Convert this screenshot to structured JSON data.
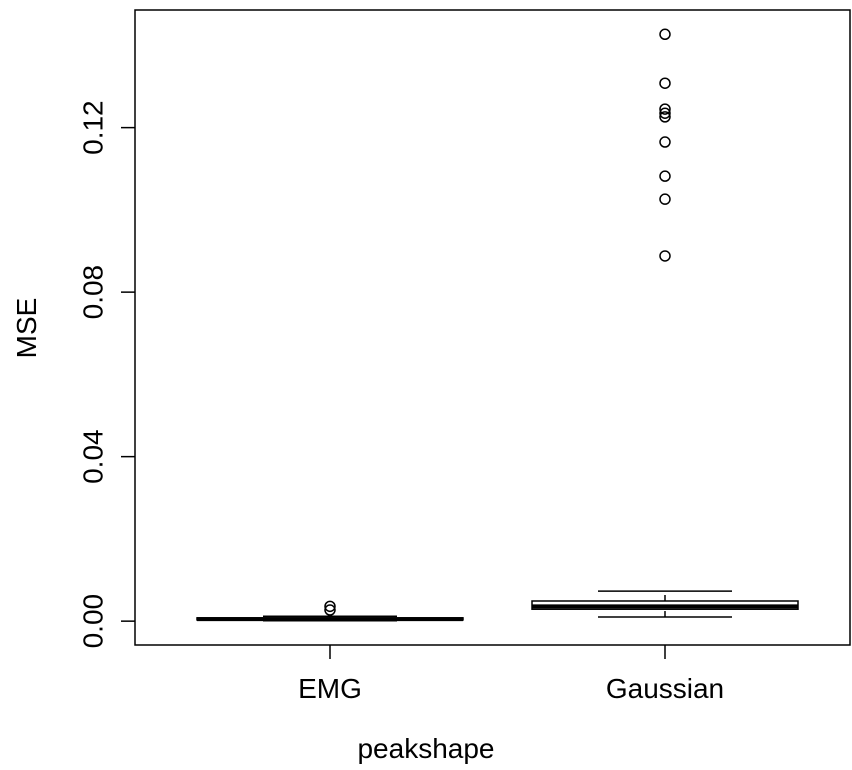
{
  "chart_data": {
    "type": "box",
    "xlabel": "peakshape",
    "ylabel": "MSE",
    "categories": [
      "EMG",
      "Gaussian"
    ],
    "boxes": [
      {
        "min": 0.0001,
        "q1": 0.0003,
        "median": 0.0005,
        "q3": 0.0008,
        "max": 0.0012,
        "outliers": [
          0.0036,
          0.0027
        ]
      },
      {
        "min": 0.001,
        "q1": 0.0029,
        "median": 0.0036,
        "q3": 0.0049,
        "max": 0.0073,
        "outliers": [
          0.1427,
          0.1308,
          0.1245,
          0.1235,
          0.1226,
          0.1165,
          0.1082,
          0.1026,
          0.0888
        ]
      }
    ],
    "color": "#000000",
    "ylim": [
      -0.0058,
      0.1486
    ],
    "yticks": [
      {
        "value": 0,
        "label": "0.00"
      },
      0.04,
      0.08,
      0.12
    ]
  }
}
